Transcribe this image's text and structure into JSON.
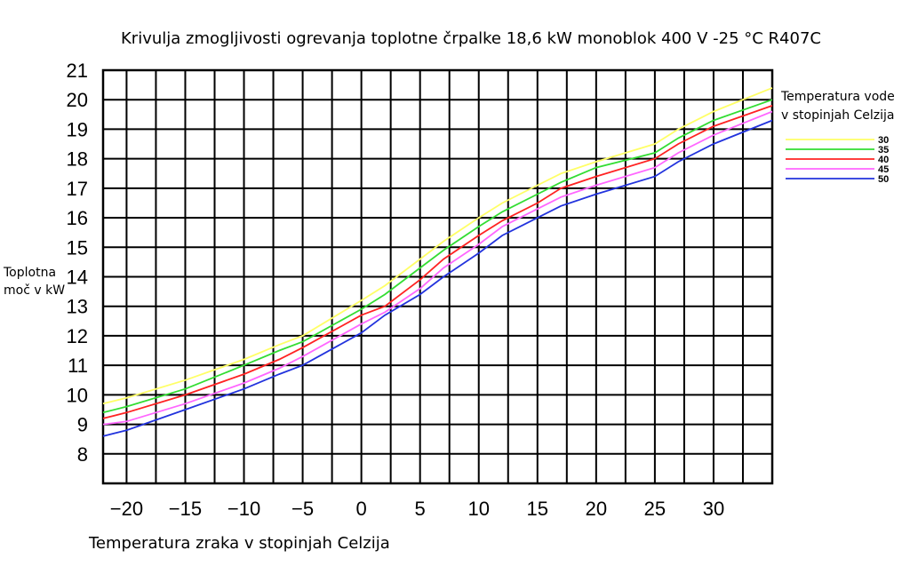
{
  "chart_data": {
    "type": "line",
    "title": "Krivulja zmogljivosti ogrevanja toplotne črpalke 18,6 kW monoblok 400 V -25 °C R407C",
    "ylabel_lines": [
      "Toplotna",
      "moč v kW"
    ],
    "xlabel": "Temperatura zraka v stopinjah Celzija",
    "legend_title_lines": [
      "Temperatura vode",
      "v stopinjah Celzija"
    ],
    "legend_position": "right",
    "grid": true,
    "xlim": [
      -22,
      35
    ],
    "ylim": [
      7,
      21
    ],
    "x_ticks": [
      -20,
      -15,
      -10,
      -5,
      0,
      5,
      10,
      15,
      20,
      25,
      30
    ],
    "x_tick_labels": [
      "−20",
      "−15",
      "−10",
      "−5",
      "0",
      "5",
      "10",
      "15",
      "20",
      "25",
      "30"
    ],
    "y_ticks": [
      8,
      9,
      10,
      11,
      12,
      13,
      14,
      15,
      16,
      17,
      18,
      19,
      20,
      21
    ],
    "y_tick_labels": [
      "8",
      "9",
      "10",
      "11",
      "12",
      "13",
      "14",
      "15",
      "16",
      "17",
      "18",
      "19",
      "20",
      "21"
    ],
    "x": [
      -22,
      -20,
      -15,
      -10,
      -7,
      -5,
      0,
      2,
      5,
      7,
      10,
      12,
      15,
      17,
      20,
      25,
      27,
      30,
      35
    ],
    "series": [
      {
        "name": "30",
        "color": "#ffff66",
        "values": [
          9.7,
          9.9,
          10.5,
          11.2,
          11.7,
          12.0,
          13.2,
          13.7,
          14.6,
          15.2,
          16.0,
          16.5,
          17.1,
          17.5,
          17.9,
          18.5,
          19.0,
          19.6,
          20.4
        ]
      },
      {
        "name": "35",
        "color": "#33dd33",
        "values": [
          9.4,
          9.6,
          10.2,
          11.0,
          11.5,
          11.8,
          12.9,
          13.4,
          14.3,
          14.9,
          15.7,
          16.2,
          16.8,
          17.2,
          17.7,
          18.2,
          18.7,
          19.3,
          20.0
        ]
      },
      {
        "name": "40",
        "color": "#ff2222",
        "values": [
          9.2,
          9.4,
          10.0,
          10.7,
          11.2,
          11.6,
          12.7,
          13.0,
          13.9,
          14.6,
          15.4,
          15.9,
          16.5,
          17.0,
          17.4,
          18.0,
          18.5,
          19.1,
          19.8
        ]
      },
      {
        "name": "45",
        "color": "#ff66ff",
        "values": [
          9.0,
          9.1,
          9.7,
          10.4,
          10.9,
          11.3,
          12.4,
          12.8,
          13.6,
          14.3,
          15.1,
          15.7,
          16.3,
          16.7,
          17.1,
          17.7,
          18.2,
          18.8,
          19.6
        ]
      },
      {
        "name": "50",
        "color": "#2233dd",
        "values": [
          8.6,
          8.8,
          9.5,
          10.2,
          10.7,
          11.0,
          12.1,
          12.7,
          13.4,
          14.0,
          14.8,
          15.4,
          16.0,
          16.4,
          16.8,
          17.4,
          17.9,
          18.5,
          19.3
        ]
      }
    ]
  }
}
